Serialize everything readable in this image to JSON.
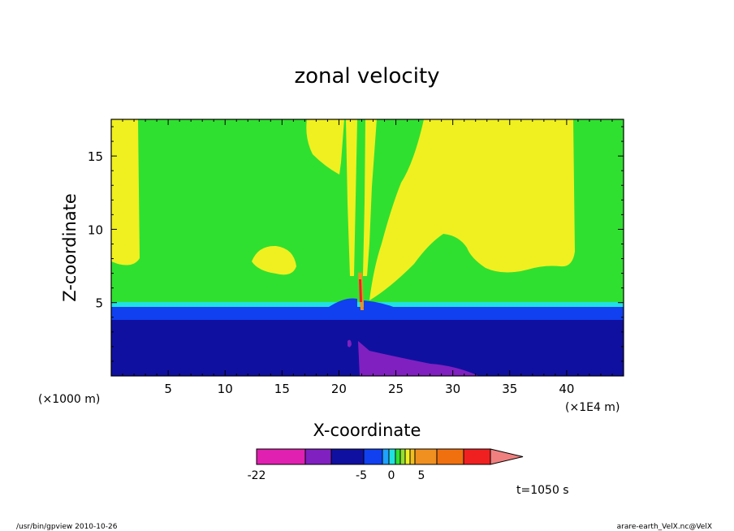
{
  "chart_data": {
    "type": "heatmap",
    "title": "zonal velocity",
    "xlabel": "X-coordinate",
    "ylabel": "Z-coordinate",
    "x_unit_left": "(×1000 m)",
    "x_unit_right": "(×1E4 m)",
    "xlim": [
      0,
      45
    ],
    "ylim": [
      0,
      17.5
    ],
    "xticks": [
      5,
      10,
      15,
      20,
      25,
      30,
      35,
      40
    ],
    "yticks": [
      5,
      10,
      15
    ],
    "time_label": "t=1050 s",
    "colorbar": {
      "colors": [
        "#e020b0",
        "#8020c0",
        "#1010a0",
        "#1040f0",
        "#20a0ff",
        "#20e0e0",
        "#30e030",
        "#90e030",
        "#f0f020",
        "#f0c020",
        "#f09020",
        "#f07010",
        "#f02020",
        "#f08080"
      ],
      "tick_labels": [
        "-22",
        "-5",
        "0",
        "5"
      ]
    },
    "colors": {
      "purple": "#8020c0",
      "dark_blue": "#1010a0",
      "blue": "#1040f0",
      "cyan": "#20e0e0",
      "green": "#30e030",
      "yellow": "#f0f020"
    }
  },
  "footer": {
    "left": "/usr/bin/gpview   2010-10-26",
    "right": "arare-earth_VelX.nc@VelX"
  }
}
